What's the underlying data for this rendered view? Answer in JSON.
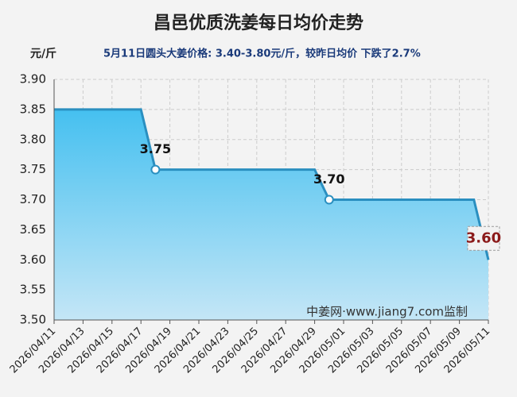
{
  "chart_data": {
    "type": "line",
    "title": "昌邑优质洗姜每日均价走势",
    "y_unit": "元/斤",
    "subtitle": "5月11日圆头大姜价格: 3.40-3.80元/斤，较昨日均价 下跌了2.7%",
    "watermark": "中姜网·www.jiang7.com监制",
    "categories": [
      "2026/04/11",
      null,
      "2026/04/13",
      null,
      "2026/04/15",
      null,
      "2026/04/17",
      null,
      "2026/04/19",
      null,
      "2026/04/21",
      null,
      "2026/04/23",
      null,
      "2026/04/25",
      null,
      "2026/04/27",
      null,
      "2026/04/29",
      null,
      "2026/05/01",
      null,
      "2026/05/03",
      null,
      "2026/05/05",
      null,
      "2026/05/07",
      null,
      "2026/05/09",
      null,
      "2026/05/11"
    ],
    "values": [
      3.85,
      3.85,
      3.85,
      3.85,
      3.85,
      3.85,
      3.85,
      3.75,
      3.75,
      3.75,
      3.75,
      3.75,
      3.75,
      3.75,
      3.75,
      3.75,
      3.75,
      3.75,
      3.75,
      3.7,
      3.7,
      3.7,
      3.7,
      3.7,
      3.7,
      3.7,
      3.7,
      3.7,
      3.7,
      3.7,
      3.6
    ],
    "value_labels": [
      null,
      null,
      null,
      null,
      null,
      null,
      null,
      "3.75",
      null,
      null,
      null,
      null,
      null,
      null,
      null,
      null,
      null,
      null,
      null,
      "3.70",
      null,
      null,
      null,
      null,
      null,
      null,
      null,
      null,
      null,
      null,
      "3.60"
    ],
    "ylim": [
      3.5,
      3.9
    ],
    "yticks": [
      {
        "value": 3.5,
        "label": "3.50"
      },
      3.55,
      {
        "value": 3.6,
        "label": "3.60"
      },
      3.65,
      {
        "value": 3.7,
        "label": "3.70"
      },
      3.75,
      {
        "value": 3.8,
        "label": "3.80"
      },
      3.85,
      {
        "value": 3.9,
        "label": "3.90"
      }
    ],
    "color": "#2a8fc0",
    "area": true,
    "grid": true,
    "highlight_color": "#8b1a1a"
  }
}
